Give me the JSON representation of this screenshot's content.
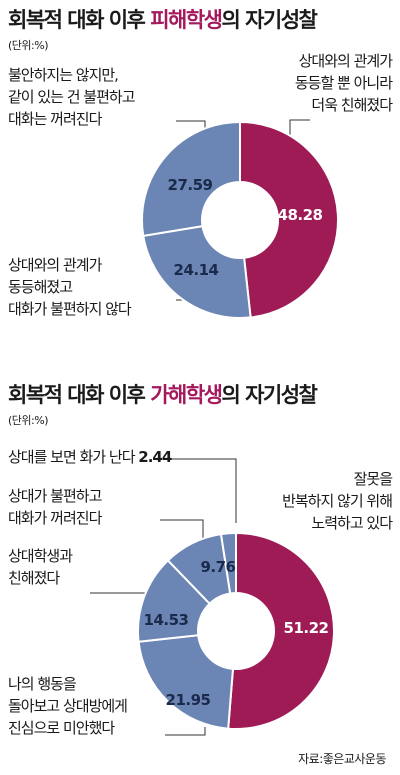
{
  "chart_data": [
    {
      "type": "pie",
      "title_parts": [
        "회복적 대화 이후 ",
        "피해학생",
        "의 자기성찰"
      ],
      "unit": "(단위:%)",
      "colors": {
        "accent": "#9e1b55",
        "blue": "#6b85b5",
        "stroke": "#ffffff"
      },
      "slices": [
        {
          "label": "상대와의 관계가\n동등할 뿐 아니라\n더욱 친해졌다",
          "value": 48.28,
          "value_text": "48.28",
          "color": "#9e1b55"
        },
        {
          "label": "상대와의 관계가\n동등해졌고\n대화가 불편하지 않다",
          "value": 24.14,
          "value_text": "24.14",
          "color": "#6b85b5"
        },
        {
          "label": "불안하지는 않지만,\n같이 있는 건 불편하고\n대화는 꺼려진다",
          "value": 27.59,
          "value_text": "27.59",
          "color": "#6b85b5"
        }
      ]
    },
    {
      "type": "pie",
      "title_parts": [
        "회복적 대화 이후 ",
        "가해학생",
        "의 자기성찰"
      ],
      "unit": "(단위:%)",
      "colors": {
        "accent": "#9e1b55",
        "blue": "#6b85b5",
        "stroke": "#ffffff"
      },
      "slices": [
        {
          "label": "잘못을\n반복하지 않기 위해\n노력하고 있다",
          "value": 51.22,
          "value_text": "51.22",
          "color": "#9e1b55"
        },
        {
          "label": "나의 행동을\n돌아보고 상대방에게\n진심으로 미안했다",
          "value": 21.95,
          "value_text": "21.95",
          "color": "#6b85b5"
        },
        {
          "label": "상대학생과\n친해졌다",
          "value": 14.53,
          "value_text": "14.53",
          "color": "#6b85b5"
        },
        {
          "label": "상대가 불편하고\n대화가 꺼려진다",
          "value": 9.76,
          "value_text": "9.76",
          "color": "#6b85b5"
        },
        {
          "label": "상대를 보면 화가 난다",
          "value": 2.44,
          "value_text": "2.44",
          "color": "#6b85b5"
        }
      ]
    }
  ],
  "source": "자료:좋은교사운동"
}
